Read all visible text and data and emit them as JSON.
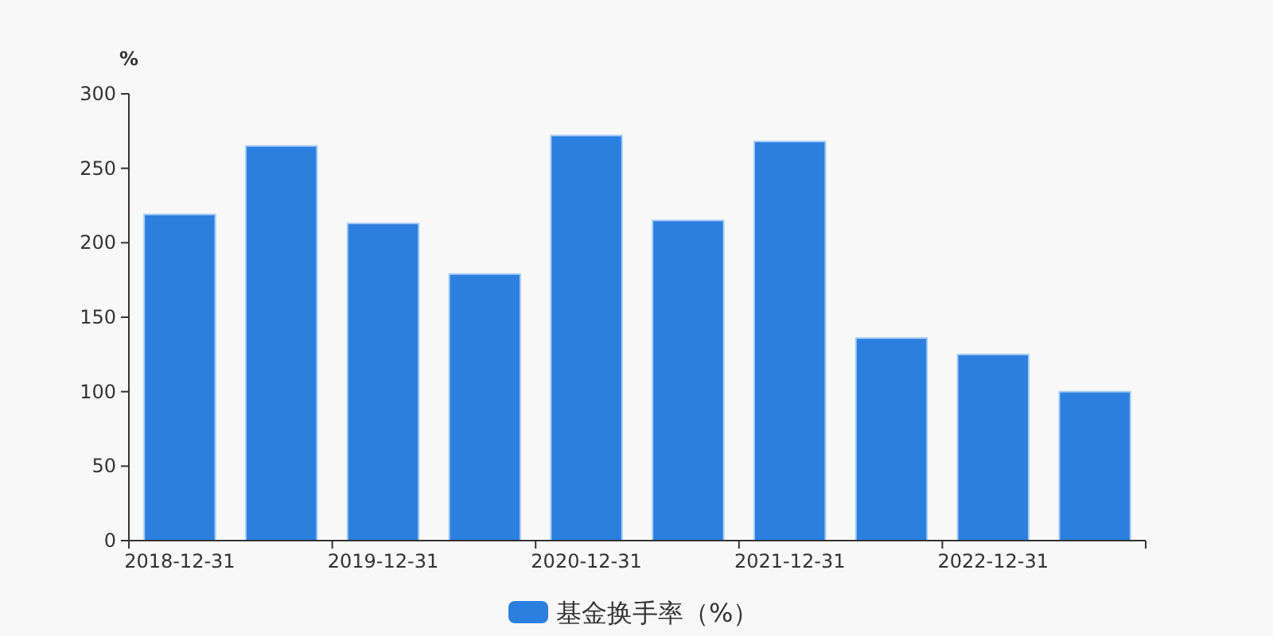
{
  "chart_data": {
    "type": "bar",
    "ylabel": "%",
    "categories": [
      "2018-12-31",
      null,
      "2019-12-31",
      null,
      "2020-12-31",
      null,
      "2021-12-31",
      null,
      "2022-12-31",
      null
    ],
    "series": [
      {
        "name": "基金换手率（%）",
        "color": "#2d7fdf",
        "values": [
          219,
          265,
          213,
          179,
          272,
          215,
          268,
          136,
          125,
          100
        ]
      }
    ],
    "ylim": [
      0,
      300
    ],
    "yticks": [
      0,
      50,
      100,
      150,
      200,
      250,
      300
    ],
    "legend": "bottom"
  }
}
